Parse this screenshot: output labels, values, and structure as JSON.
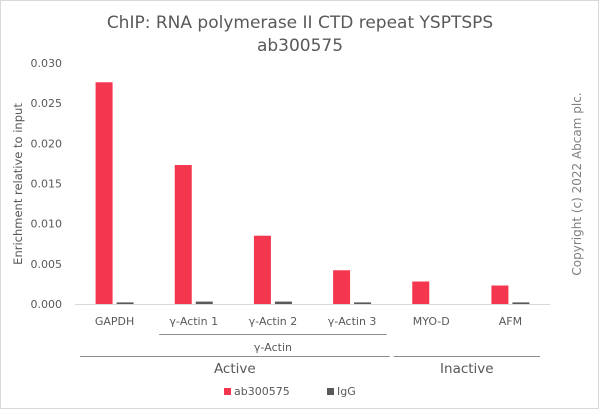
{
  "chart_data": {
    "type": "bar",
    "title": [
      "ChIP: RNA polymerase II CTD repeat YSPTSPS",
      "ab300575"
    ],
    "ylabel": "Enrichment relative to input",
    "ylim": [
      0,
      0.03
    ],
    "yticks": [
      "0.000",
      "0.005",
      "0.010",
      "0.015",
      "0.020",
      "0.025",
      "0.030"
    ],
    "categories": [
      "GAPDH",
      "γ-Actin 1",
      "γ-Actin 2",
      "γ-Actin 3",
      "MYO-D",
      "AFM"
    ],
    "series": [
      {
        "name": "ab300575",
        "color": "#f5364f",
        "values": [
          0.0276,
          0.0173,
          0.0085,
          0.0042,
          0.0028,
          0.0023
        ]
      },
      {
        "name": "IgG",
        "color": "#595959",
        "values": [
          0.0002,
          0.0003,
          0.0003,
          0.0002,
          0.0,
          0.0002
        ]
      }
    ],
    "subgroup_label": "γ-Actin",
    "groups": [
      "Active",
      "Inactive"
    ],
    "legend_position": "bottom",
    "grid": false
  },
  "copyright": "Copyright (c) 2022 Abcam plc."
}
